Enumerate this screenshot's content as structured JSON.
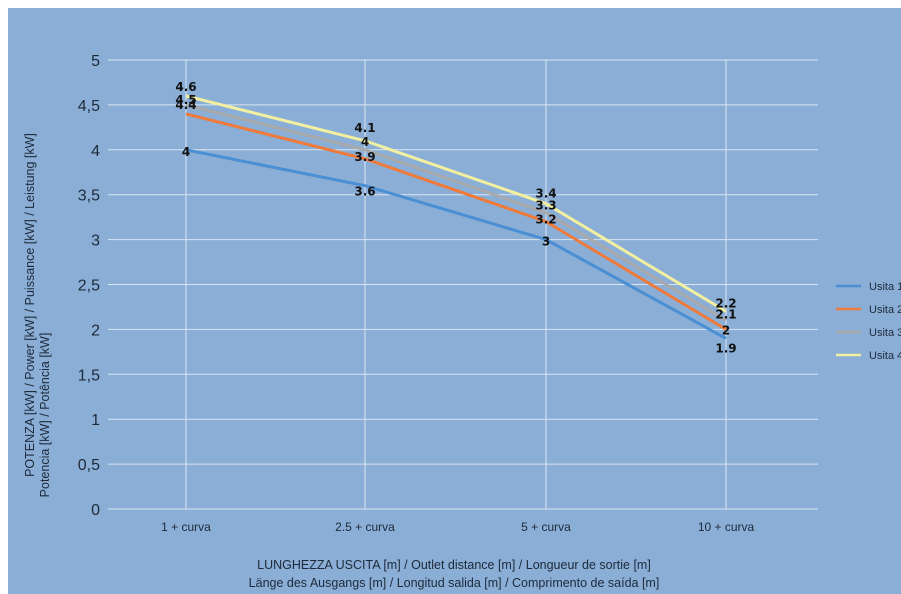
{
  "chart_data": {
    "type": "line",
    "categories": [
      "1 + curva",
      "2.5 + curva",
      "5 + curva",
      "10 + curva"
    ],
    "series": [
      {
        "name": "Usita 1",
        "values": [
          4,
          3.6,
          3,
          1.9
        ],
        "color": "#4a8fd4"
      },
      {
        "name": "Usita 2",
        "values": [
          4.4,
          3.9,
          3.2,
          2
        ],
        "color": "#ef7a3a"
      },
      {
        "name": "Usita 3",
        "values": [
          4.5,
          4,
          3.3,
          2.1
        ],
        "color": "#a7a9ab"
      },
      {
        "name": "Usita 4",
        "values": [
          4.6,
          4.1,
          3.4,
          2.2
        ],
        "color": "#f2f0a0"
      }
    ],
    "ylim": [
      0,
      5
    ],
    "yticks": [
      "0",
      "0,5",
      "1",
      "1,5",
      "2",
      "2,5",
      "3",
      "3,5",
      "4",
      "4,5",
      "5"
    ],
    "ylabel_line1": "POTENZA [kW] / Power [kW] / Puissance [kW] / Leistung [kW]",
    "ylabel_line2": "Potencia [kW] / Potência [kW]",
    "xlabel_line1": "LUNGHEZZA USCITA [m] / Outlet distance [m] / Longueur de sortie [m]",
    "xlabel_line2": "Länge des Ausgangs [m] / Longitud salida [m] / Comprimento de saída [m]",
    "grid": true,
    "legend_position": "right",
    "background_color": "#8aaed6",
    "grid_color": "#d9e5f2"
  }
}
